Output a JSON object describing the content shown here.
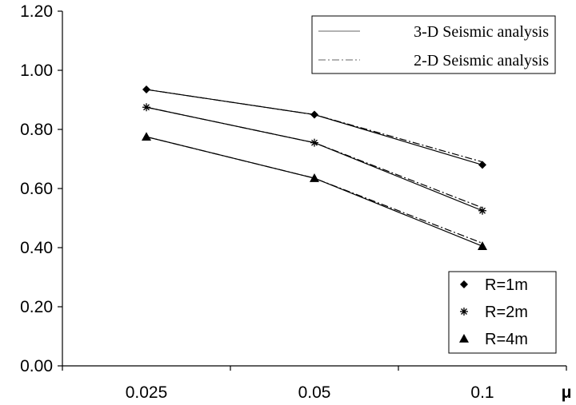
{
  "chart_data": {
    "type": "line",
    "x_label": "μ",
    "categories": [
      "0.025",
      "0.05",
      "0.1"
    ],
    "y_ticks": [
      "0.00",
      "0.20",
      "0.40",
      "0.60",
      "0.80",
      "1.00",
      "1.20"
    ],
    "ylim": [
      0,
      1.2
    ],
    "grid": false,
    "line_styles": [
      {
        "name": "3-D Seismic analysis",
        "dash": "solid"
      },
      {
        "name": "2-D Seismic analysis",
        "dash": "dash-dot"
      }
    ],
    "markers": [
      {
        "name": "R=1m",
        "marker": "diamond"
      },
      {
        "name": "R=2m",
        "marker": "asterisk"
      },
      {
        "name": "R=4m",
        "marker": "triangle"
      }
    ],
    "series": [
      {
        "name": "R=1m",
        "analysis": "3-D Seismic analysis",
        "values": [
          0.935,
          0.85,
          0.68
        ]
      },
      {
        "name": "R=1m",
        "analysis": "2-D Seismic analysis",
        "values": [
          0.935,
          0.85,
          0.69
        ]
      },
      {
        "name": "R=2m",
        "analysis": "3-D Seismic analysis",
        "values": [
          0.875,
          0.755,
          0.525
        ]
      },
      {
        "name": "R=2m",
        "analysis": "2-D Seismic analysis",
        "values": [
          0.875,
          0.755,
          0.535
        ]
      },
      {
        "name": "R=4m",
        "analysis": "3-D Seismic analysis",
        "values": [
          0.775,
          0.635,
          0.405
        ]
      },
      {
        "name": "R=4m",
        "analysis": "2-D Seismic analysis",
        "values": [
          0.775,
          0.635,
          0.415
        ]
      }
    ],
    "legend_lines_position": "top-right",
    "legend_markers_position": "bottom-right",
    "colors": {
      "line": "#000000",
      "marker": "#000000"
    }
  }
}
